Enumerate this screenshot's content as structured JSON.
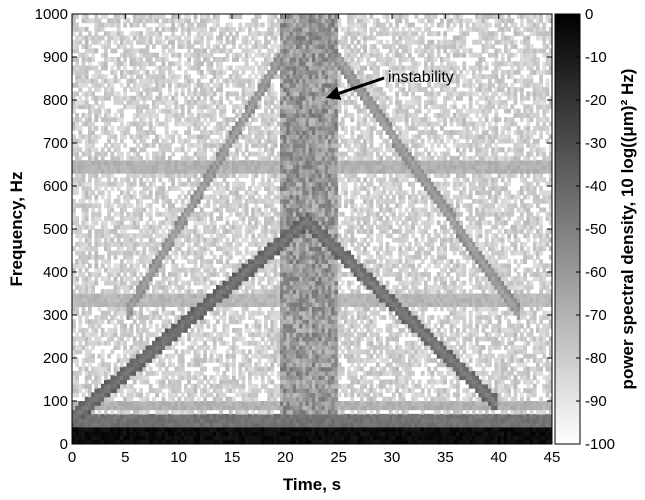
{
  "chart_data": {
    "type": "heatmap",
    "xlabel": "Time, s",
    "ylabel": "Frequency, Hz",
    "colorbar_label": "power spectral density, 10 log((μm)² Hz)",
    "xlim": [
      0,
      45
    ],
    "ylim": [
      0,
      1000
    ],
    "x_ticks": [
      0,
      5,
      10,
      15,
      20,
      25,
      30,
      35,
      40,
      45
    ],
    "y_ticks": [
      0,
      100,
      200,
      300,
      400,
      500,
      600,
      700,
      800,
      900,
      1000
    ],
    "colorbar_range": [
      -100,
      0
    ],
    "colorbar_ticks": [
      0,
      -10,
      -20,
      -30,
      -40,
      -50,
      -60,
      -70,
      -80,
      -90,
      -100
    ],
    "colormap": "gray (black = 0 dB, white = -100 dB)",
    "features": [
      {
        "kind": "horizontal-band",
        "freq_range": [
          0,
          40
        ],
        "level_db": -5
      },
      {
        "kind": "horizontal-band",
        "freq_range": [
          40,
          70
        ],
        "level_db": -45
      },
      {
        "kind": "horizontal-band",
        "freq_range": [
          85,
          100
        ],
        "level_db": -70
      },
      {
        "kind": "horizontal-band",
        "freq_range": [
          320,
          350
        ],
        "level_db": -72
      },
      {
        "kind": "horizontal-band",
        "freq_range": [
          630,
          665
        ],
        "level_db": -70
      },
      {
        "kind": "sweep",
        "t": [
          0,
          22
        ],
        "f": [
          60,
          520
        ],
        "level_db": -48
      },
      {
        "kind": "sweep",
        "t": [
          22,
          40
        ],
        "f": [
          520,
          90
        ],
        "level_db": -50
      },
      {
        "kind": "sweep",
        "t": [
          5,
          22
        ],
        "f": [
          300,
          1000
        ],
        "level_db": -65
      },
      {
        "kind": "sweep",
        "t": [
          22,
          42
        ],
        "f": [
          1000,
          300
        ],
        "level_db": -65
      },
      {
        "kind": "vertical-band",
        "t_range": [
          19.5,
          25
        ],
        "level_db": -55
      }
    ],
    "annotations": [
      {
        "text": "instability",
        "arrow_to": {
          "t": 23.8,
          "f": 805
        }
      }
    ]
  },
  "colors": {
    "background": "#ffffff",
    "axis": "#000000"
  }
}
